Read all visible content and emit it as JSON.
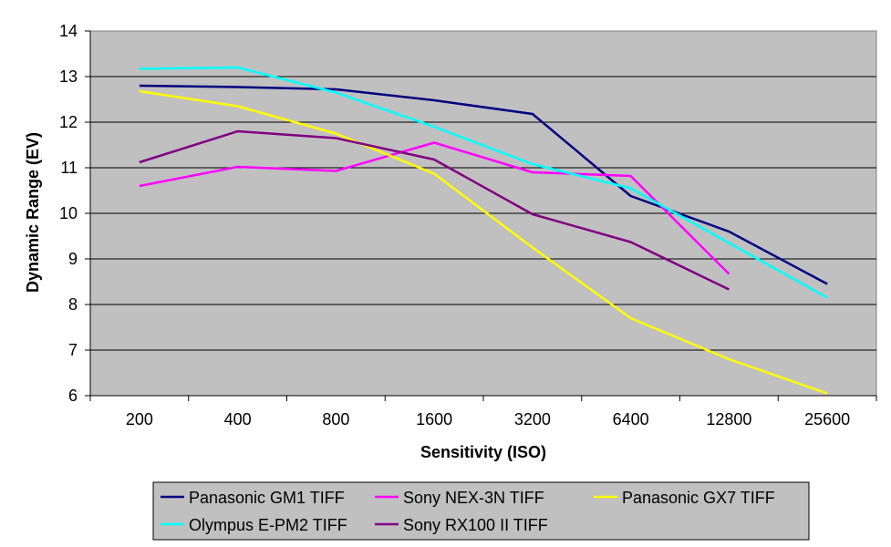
{
  "chart_data": {
    "type": "line",
    "title": "",
    "xlabel": "Sensitivity (ISO)",
    "ylabel": "Dynamic Range (EV)",
    "categories": [
      "200",
      "400",
      "800",
      "1600",
      "3200",
      "6400",
      "12800",
      "25600"
    ],
    "ylim": [
      6,
      14
    ],
    "yticks": [
      "6",
      "7",
      "8",
      "9",
      "10",
      "11",
      "12",
      "13",
      "14"
    ],
    "grid": true,
    "legend_position": "bottom",
    "colors": {
      "plot_background": "#c0c0c0",
      "gridline": "#000000",
      "legend_background": "#c0c0c0"
    },
    "series": [
      {
        "name": "Panasonic GM1 TIFF",
        "color": "#000080",
        "values": [
          12.8,
          12.77,
          12.72,
          12.48,
          12.18,
          10.38,
          9.6,
          8.45
        ]
      },
      {
        "name": "Sony NEX-3N TIFF",
        "color": "#ff00ff",
        "values": [
          10.6,
          11.02,
          10.93,
          11.55,
          10.9,
          10.82,
          8.67,
          null
        ]
      },
      {
        "name": "Panasonic GX7 TIFF",
        "color": "#ffff00",
        "values": [
          12.68,
          12.35,
          11.75,
          10.87,
          9.25,
          7.7,
          6.8,
          6.05
        ]
      },
      {
        "name": "Olympus E-PM2 TIFF",
        "color": "#00ffff",
        "values": [
          13.17,
          13.2,
          12.65,
          11.9,
          11.08,
          10.55,
          9.35,
          8.15
        ]
      },
      {
        "name": "Sony RX100 II TIFF",
        "color": "#800080",
        "values": [
          11.12,
          11.8,
          11.65,
          11.18,
          9.98,
          9.37,
          8.33,
          null
        ]
      }
    ]
  }
}
